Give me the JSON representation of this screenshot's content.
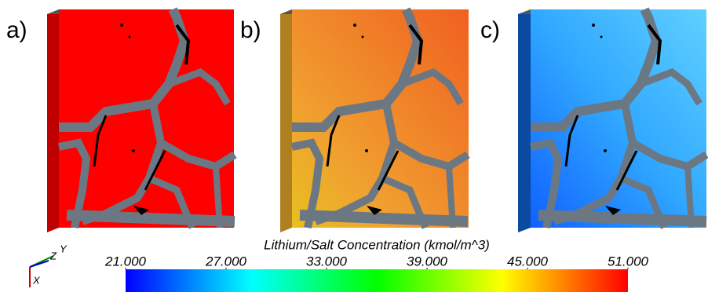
{
  "panels": [
    {
      "label": "a)"
    },
    {
      "label": "b)"
    },
    {
      "label": "c)"
    }
  ],
  "colorbar": {
    "title": "Lithium/Salt Concentration (kmol/m^3)",
    "clim": [
      21,
      51
    ],
    "ticks": [
      {
        "value": 21,
        "label": "21.000"
      },
      {
        "value": 27,
        "label": "27.000"
      },
      {
        "value": 33,
        "label": "33.000"
      },
      {
        "value": 39,
        "label": "39.000"
      },
      {
        "value": 45,
        "label": "45.000"
      },
      {
        "value": 51,
        "label": "51.000"
      }
    ],
    "colors": [
      "#0000ff",
      "#00ffff",
      "#00ff00",
      "#ffff00",
      "#ff0000"
    ]
  },
  "axes_triad": {
    "labels": [
      "Y",
      "Z",
      "X"
    ]
  }
}
